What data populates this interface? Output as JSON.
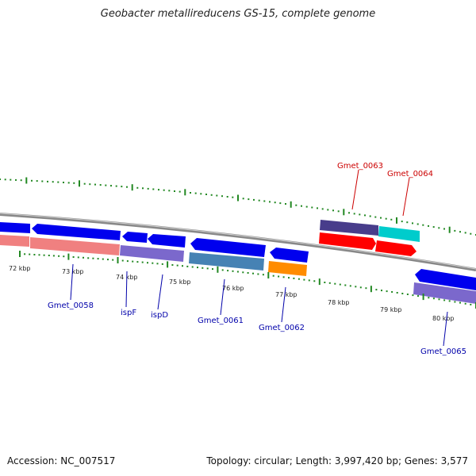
{
  "title": "Geobacter metallireducens GS-15, complete genome",
  "footer": {
    "accession": "Accession: NC_007517",
    "summary": "Topology: circular; Length: 3,997,420 bp; Genes: 3,577"
  },
  "ticks": [
    "72 kbp",
    "73 kbp",
    "74 kbp",
    "75 kbp",
    "76 kbp",
    "77 kbp",
    "78 kbp",
    "79 kbp",
    "80 kbp"
  ],
  "genes_forward": [
    {
      "label": "Gmet_0063",
      "color": "#cc0000"
    },
    {
      "label": "Gmet_0064",
      "color": "#cc0000"
    }
  ],
  "genes_reverse": [
    {
      "label": "Gmet_0058",
      "color": "#0000aa"
    },
    {
      "label": "ispF",
      "color": "#0000aa"
    },
    {
      "label": "ispD",
      "color": "#0000aa"
    },
    {
      "label": "Gmet_0061",
      "color": "#0000aa"
    },
    {
      "label": "Gmet_0062",
      "color": "#0000aa"
    },
    {
      "label": "Gmet_0065",
      "color": "#0000aa"
    }
  ],
  "colors": {
    "backbone": "#888888",
    "cds": "#0000ee",
    "tick": "#228822",
    "forward_feature": "#ff0000",
    "pink_feature": "#f08080",
    "purple_feature": "#7b68cc",
    "steel_feature": "#4682b4",
    "orange_feature": "#ff8c00",
    "darkslate_feature": "#483d8b",
    "cyan_feature": "#00cccc"
  }
}
